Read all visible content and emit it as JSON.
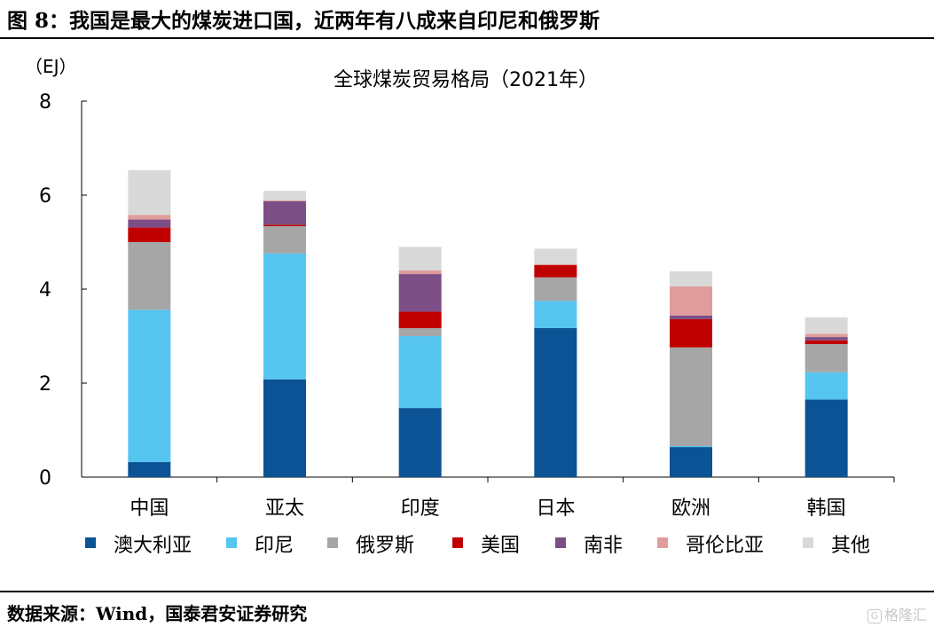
{
  "figure": {
    "title": "图 8：我国是最大的煤炭进口国，近两年有八成来自印尼和俄罗斯",
    "source": "数据来源：Wind，国泰君安证券研究",
    "watermark": "格隆汇"
  },
  "chart_data": {
    "type": "bar",
    "stacked": true,
    "title": "全球煤炭贸易格局（2021年）",
    "ylabel": "（EJ）",
    "ylim": [
      0,
      8
    ],
    "yticks": [
      0,
      2,
      4,
      6,
      8
    ],
    "categories": [
      "中国",
      "亚太",
      "印度",
      "日本",
      "欧洲",
      "韩国"
    ],
    "legend_position": "bottom",
    "grid": false,
    "series": [
      {
        "name": "澳大利亚",
        "color": "#0b5394",
        "values": [
          0.32,
          2.08,
          1.47,
          3.17,
          0.64,
          1.65
        ]
      },
      {
        "name": "印尼",
        "color": "#56c5f0",
        "values": [
          3.24,
          2.68,
          1.53,
          0.58,
          0.02,
          0.58
        ]
      },
      {
        "name": "俄罗斯",
        "color": "#a6a6a6",
        "values": [
          1.44,
          0.58,
          0.17,
          0.5,
          2.1,
          0.6
        ]
      },
      {
        "name": "美国",
        "color": "#c00000",
        "values": [
          0.31,
          0.03,
          0.35,
          0.26,
          0.6,
          0.08
        ]
      },
      {
        "name": "南非",
        "color": "#7b4f86",
        "values": [
          0.17,
          0.5,
          0.8,
          0.0,
          0.08,
          0.07
        ]
      },
      {
        "name": "哥伦比亚",
        "color": "#e09c9c",
        "values": [
          0.1,
          0.02,
          0.08,
          0.02,
          0.62,
          0.07
        ]
      },
      {
        "name": "其他",
        "color": "#d9d9d9",
        "values": [
          0.95,
          0.2,
          0.5,
          0.33,
          0.32,
          0.35
        ]
      }
    ]
  }
}
